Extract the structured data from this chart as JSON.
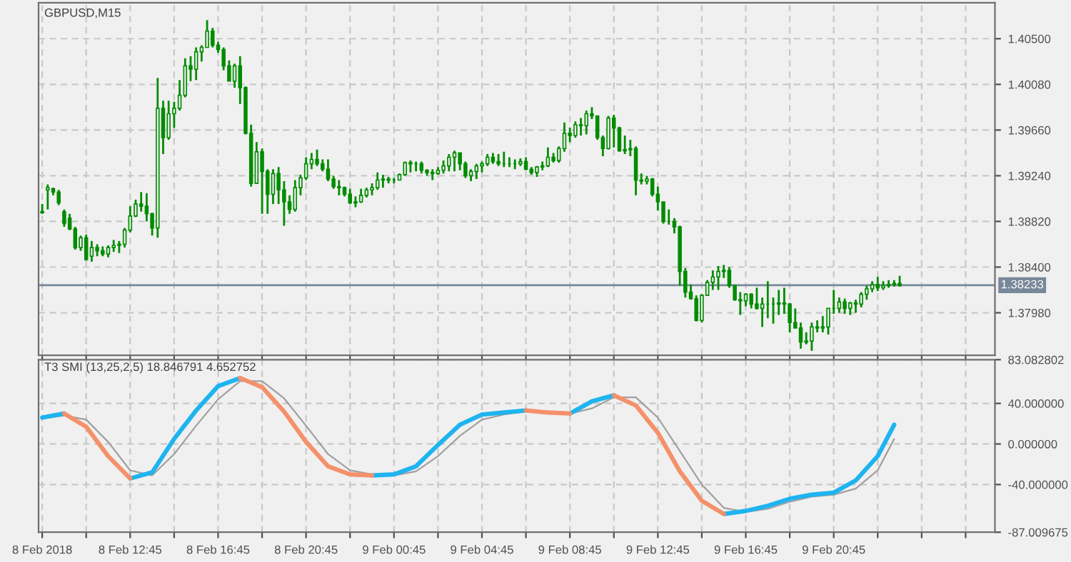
{
  "chart_data": [
    {
      "type": "candlestick",
      "title": "GBPUSD,M15",
      "color": "#008c00",
      "grid": true,
      "tick_labels": "y",
      "x": [
        "2018-02-08T08:45",
        "2018-02-08T09:00",
        "2018-02-08T09:15",
        "2018-02-08T09:30",
        "2018-02-08T09:45",
        "2018-02-08T10:00",
        "2018-02-08T10:15",
        "2018-02-08T10:30",
        "2018-02-08T10:45",
        "2018-02-08T11:00",
        "2018-02-08T11:15",
        "2018-02-08T11:30",
        "2018-02-08T11:45",
        "2018-02-08T12:00",
        "2018-02-08T12:15",
        "2018-02-08T12:30",
        "2018-02-08T12:45",
        "2018-02-08T13:00",
        "2018-02-08T13:15",
        "2018-02-08T13:30",
        "2018-02-08T13:45",
        "2018-02-08T14:00",
        "2018-02-08T14:15",
        "2018-02-08T14:30",
        "2018-02-08T14:45",
        "2018-02-08T15:00",
        "2018-02-08T15:15",
        "2018-02-08T15:30",
        "2018-02-08T15:45",
        "2018-02-08T16:00",
        "2018-02-08T16:15",
        "2018-02-08T16:30",
        "2018-02-08T16:45",
        "2018-02-08T17:00",
        "2018-02-08T17:15",
        "2018-02-08T17:30",
        "2018-02-08T17:45",
        "2018-02-08T18:00",
        "2018-02-08T18:15",
        "2018-02-08T18:30",
        "2018-02-08T18:45",
        "2018-02-08T19:00",
        "2018-02-08T19:15",
        "2018-02-08T19:30",
        "2018-02-08T19:45",
        "2018-02-08T20:00",
        "2018-02-08T20:15",
        "2018-02-08T20:30",
        "2018-02-08T20:45",
        "2018-02-08T21:00",
        "2018-02-08T21:15",
        "2018-02-08T21:30",
        "2018-02-08T21:45",
        "2018-02-08T22:00",
        "2018-02-08T22:15",
        "2018-02-08T22:30",
        "2018-02-08T22:45",
        "2018-02-08T23:00",
        "2018-02-08T23:15",
        "2018-02-08T23:30",
        "2018-02-08T23:45",
        "2018-02-09T00:00",
        "2018-02-09T00:15",
        "2018-02-09T00:30",
        "2018-02-09T00:45",
        "2018-02-09T01:00",
        "2018-02-09T01:15",
        "2018-02-09T01:30",
        "2018-02-09T01:45",
        "2018-02-09T02:00",
        "2018-02-09T02:15",
        "2018-02-09T02:30",
        "2018-02-09T02:45",
        "2018-02-09T03:00",
        "2018-02-09T03:15",
        "2018-02-09T03:30",
        "2018-02-09T03:45",
        "2018-02-09T04:00",
        "2018-02-09T04:15",
        "2018-02-09T04:30",
        "2018-02-09T04:45",
        "2018-02-09T05:00",
        "2018-02-09T05:15",
        "2018-02-09T05:30",
        "2018-02-09T05:45",
        "2018-02-09T06:00",
        "2018-02-09T06:15",
        "2018-02-09T06:30",
        "2018-02-09T06:45",
        "2018-02-09T07:00",
        "2018-02-09T07:15",
        "2018-02-09T07:30",
        "2018-02-09T07:45",
        "2018-02-09T08:00",
        "2018-02-09T08:15",
        "2018-02-09T08:30",
        "2018-02-09T08:45",
        "2018-02-09T09:00",
        "2018-02-09T09:15",
        "2018-02-09T09:30",
        "2018-02-09T09:45",
        "2018-02-09T10:00",
        "2018-02-09T10:15",
        "2018-02-09T10:30",
        "2018-02-09T10:45",
        "2018-02-09T11:00",
        "2018-02-09T11:15",
        "2018-02-09T11:30",
        "2018-02-09T11:45",
        "2018-02-09T12:00",
        "2018-02-09T12:15",
        "2018-02-09T12:30",
        "2018-02-09T12:45",
        "2018-02-09T13:00",
        "2018-02-09T13:15",
        "2018-02-09T13:30",
        "2018-02-09T13:45",
        "2018-02-09T14:00",
        "2018-02-09T14:15",
        "2018-02-09T14:30",
        "2018-02-09T14:45",
        "2018-02-09T15:00",
        "2018-02-09T15:15",
        "2018-02-09T15:30",
        "2018-02-09T15:45",
        "2018-02-09T16:00",
        "2018-02-09T16:15",
        "2018-02-09T16:30",
        "2018-02-09T16:45",
        "2018-02-09T17:00",
        "2018-02-09T17:15",
        "2018-02-09T17:30",
        "2018-02-09T17:45",
        "2018-02-09T18:00",
        "2018-02-09T18:15",
        "2018-02-09T18:30",
        "2018-02-09T18:45",
        "2018-02-09T19:00",
        "2018-02-09T19:15",
        "2018-02-09T19:30",
        "2018-02-09T19:45",
        "2018-02-09T20:00",
        "2018-02-09T20:15",
        "2018-02-09T20:30",
        "2018-02-09T20:45",
        "2018-02-09T21:00",
        "2018-02-09T21:15",
        "2018-02-09T21:30",
        "2018-02-09T21:45",
        "2018-02-09T22:00",
        "2018-02-09T22:15",
        "2018-02-09T22:30",
        "2018-02-09T22:45",
        "2018-02-09T23:00",
        "2018-02-09T23:15",
        "2018-02-09T23:30",
        "2018-02-09T23:45"
      ],
      "ohlc": [
        [
          1.3891,
          1.3898,
          1.3889,
          1.389
        ],
        [
          1.3911,
          1.3916,
          1.3893,
          1.3913
        ],
        [
          1.3912,
          1.3913,
          1.3906,
          1.3909
        ],
        [
          1.3909,
          1.3911,
          1.3897,
          1.3899
        ],
        [
          1.3891,
          1.3893,
          1.3877,
          1.388
        ],
        [
          1.3885,
          1.3889,
          1.3874,
          1.3875
        ],
        [
          1.3875,
          1.3877,
          1.3856,
          1.3858
        ],
        [
          1.3858,
          1.3869,
          1.3855,
          1.3867
        ],
        [
          1.3867,
          1.387,
          1.3846,
          1.3847
        ],
        [
          1.385,
          1.3864,
          1.3845,
          1.3858
        ],
        [
          1.3858,
          1.3861,
          1.385,
          1.3855
        ],
        [
          1.3855,
          1.3859,
          1.385,
          1.3852
        ],
        [
          1.3852,
          1.386,
          1.3849,
          1.3858
        ],
        [
          1.3858,
          1.3865,
          1.3854,
          1.386
        ],
        [
          1.386,
          1.3864,
          1.3853,
          1.3861
        ],
        [
          1.3861,
          1.3876,
          1.3858,
          1.3874
        ],
        [
          1.3874,
          1.3896,
          1.3872,
          1.3887
        ],
        [
          1.3887,
          1.3902,
          1.3886,
          1.3898
        ],
        [
          1.3898,
          1.3909,
          1.3891,
          1.3896
        ],
        [
          1.3896,
          1.3908,
          1.3882,
          1.3889
        ],
        [
          1.3889,
          1.389,
          1.3869,
          1.3876
        ],
        [
          1.3876,
          1.4014,
          1.3867,
          1.3986
        ],
        [
          1.3986,
          1.3993,
          1.3944,
          1.3959
        ],
        [
          1.3959,
          1.3993,
          1.3957,
          1.3981
        ],
        [
          1.3981,
          1.3992,
          1.3968,
          1.3986
        ],
        [
          1.3986,
          1.4012,
          1.3984,
          1.3998
        ],
        [
          1.3998,
          1.4032,
          1.3996,
          1.4025
        ],
        [
          1.4025,
          1.4034,
          1.4011,
          1.4022
        ],
        [
          1.4022,
          1.4042,
          1.4012,
          1.4038
        ],
        [
          1.4038,
          1.4044,
          1.4029,
          1.4042
        ],
        [
          1.4042,
          1.4067,
          1.4042,
          1.4057
        ],
        [
          1.4057,
          1.406,
          1.4042,
          1.4044
        ],
        [
          1.4044,
          1.4047,
          1.4037,
          1.404
        ],
        [
          1.404,
          1.4042,
          1.4021,
          1.4025
        ],
        [
          1.4025,
          1.403,
          1.4011,
          1.4011
        ],
        [
          1.4011,
          1.4027,
          1.4005,
          1.4025
        ],
        [
          1.4025,
          1.4034,
          1.399,
          1.4005
        ],
        [
          1.4005,
          1.4006,
          1.3962,
          1.3963
        ],
        [
          1.3963,
          1.3971,
          1.3914,
          1.3917
        ],
        [
          1.3917,
          1.3955,
          1.3917,
          1.3946
        ],
        [
          1.3946,
          1.3949,
          1.3889,
          1.3928
        ],
        [
          1.3928,
          1.393,
          1.3889,
          1.3907
        ],
        [
          1.3907,
          1.393,
          1.3898,
          1.3926
        ],
        [
          1.3926,
          1.3932,
          1.3898,
          1.3911
        ],
        [
          1.3911,
          1.3919,
          1.3878,
          1.39
        ],
        [
          1.39,
          1.3906,
          1.3889,
          1.3893
        ],
        [
          1.3893,
          1.392,
          1.3891,
          1.3913
        ],
        [
          1.3913,
          1.3925,
          1.3906,
          1.3922
        ],
        [
          1.3922,
          1.3941,
          1.392,
          1.3935
        ],
        [
          1.3935,
          1.3945,
          1.393,
          1.3939
        ],
        [
          1.3939,
          1.3948,
          1.3933,
          1.3935
        ],
        [
          1.3935,
          1.3939,
          1.3928,
          1.393
        ],
        [
          1.393,
          1.3939,
          1.3919,
          1.3921
        ],
        [
          1.3921,
          1.3924,
          1.3912,
          1.3914
        ],
        [
          1.3914,
          1.392,
          1.3906,
          1.3913
        ],
        [
          1.3913,
          1.3914,
          1.3905,
          1.3907
        ],
        [
          1.3907,
          1.3912,
          1.3898,
          1.3899
        ],
        [
          1.3899,
          1.3905,
          1.3895,
          1.39
        ],
        [
          1.39,
          1.3912,
          1.3899,
          1.3906
        ],
        [
          1.3906,
          1.3913,
          1.3904,
          1.3911
        ],
        [
          1.3911,
          1.3917,
          1.3906,
          1.3913
        ],
        [
          1.3913,
          1.3927,
          1.3911,
          1.392
        ],
        [
          1.392,
          1.3925,
          1.3913,
          1.3921
        ],
        [
          1.3921,
          1.3923,
          1.3917,
          1.392
        ],
        [
          1.392,
          1.3922,
          1.3917,
          1.392
        ],
        [
          1.392,
          1.3926,
          1.392,
          1.3925
        ],
        [
          1.3925,
          1.3937,
          1.3924,
          1.3936
        ],
        [
          1.3936,
          1.3938,
          1.3927,
          1.3935
        ],
        [
          1.3935,
          1.3937,
          1.3928,
          1.3935
        ],
        [
          1.3935,
          1.3937,
          1.3926,
          1.3929
        ],
        [
          1.3929,
          1.393,
          1.3924,
          1.3927
        ],
        [
          1.3927,
          1.393,
          1.392,
          1.3926
        ],
        [
          1.3926,
          1.3932,
          1.3925,
          1.3929
        ],
        [
          1.3929,
          1.3938,
          1.3926,
          1.3933
        ],
        [
          1.3933,
          1.3944,
          1.3928,
          1.3941
        ],
        [
          1.3941,
          1.3947,
          1.3928,
          1.3945
        ],
        [
          1.3945,
          1.3945,
          1.3929,
          1.3935
        ],
        [
          1.3935,
          1.3937,
          1.3922,
          1.3924
        ],
        [
          1.3924,
          1.393,
          1.3919,
          1.3928
        ],
        [
          1.3928,
          1.3935,
          1.3921,
          1.3933
        ],
        [
          1.3933,
          1.3937,
          1.3927,
          1.3935
        ],
        [
          1.3935,
          1.3944,
          1.3933,
          1.3941
        ],
        [
          1.3941,
          1.3945,
          1.3935,
          1.3937
        ],
        [
          1.3937,
          1.3944,
          1.3933,
          1.3935
        ],
        [
          1.3935,
          1.3946,
          1.3932,
          1.3935
        ],
        [
          1.3935,
          1.3941,
          1.3932,
          1.3935
        ],
        [
          1.3935,
          1.3939,
          1.393,
          1.3935
        ],
        [
          1.3935,
          1.394,
          1.3933,
          1.3937
        ],
        [
          1.3937,
          1.3941,
          1.3929,
          1.393
        ],
        [
          1.393,
          1.3932,
          1.3925,
          1.3927
        ],
        [
          1.3927,
          1.3933,
          1.3923,
          1.3932
        ],
        [
          1.3932,
          1.3937,
          1.3929,
          1.3933
        ],
        [
          1.3933,
          1.395,
          1.3932,
          1.3941
        ],
        [
          1.3941,
          1.3945,
          1.3936,
          1.3938
        ],
        [
          1.3938,
          1.3951,
          1.3936,
          1.3949
        ],
        [
          1.3949,
          1.3973,
          1.3946,
          1.3963
        ],
        [
          1.3963,
          1.3968,
          1.3955,
          1.3961
        ],
        [
          1.3961,
          1.3974,
          1.3959,
          1.3971
        ],
        [
          1.3971,
          1.3977,
          1.3961,
          1.397
        ],
        [
          1.397,
          1.3984,
          1.3962,
          1.3981
        ],
        [
          1.3981,
          1.3987,
          1.3976,
          1.3979
        ],
        [
          1.3979,
          1.3979,
          1.3957,
          1.3959
        ],
        [
          1.3959,
          1.3961,
          1.3942,
          1.3949
        ],
        [
          1.3949,
          1.3979,
          1.3948,
          1.3977
        ],
        [
          1.3977,
          1.398,
          1.395,
          1.3968
        ],
        [
          1.3968,
          1.3969,
          1.3946,
          1.3947
        ],
        [
          1.3947,
          1.3961,
          1.3944,
          1.3948
        ],
        [
          1.3948,
          1.3957,
          1.3942,
          1.3949
        ],
        [
          1.3949,
          1.3951,
          1.3906,
          1.392
        ],
        [
          1.392,
          1.3926,
          1.3916,
          1.3919
        ],
        [
          1.3919,
          1.3924,
          1.3916,
          1.3921
        ],
        [
          1.3921,
          1.3922,
          1.3905,
          1.3907
        ],
        [
          1.3907,
          1.3914,
          1.3892,
          1.39
        ],
        [
          1.39,
          1.39,
          1.388,
          1.3882
        ],
        [
          1.3882,
          1.3893,
          1.3879,
          1.3882
        ],
        [
          1.3882,
          1.3885,
          1.3871,
          1.3877
        ],
        [
          1.3877,
          1.3878,
          1.3823,
          1.3836
        ],
        [
          1.3836,
          1.3839,
          1.3812,
          1.3817
        ],
        [
          1.3817,
          1.3824,
          1.381,
          1.3811
        ],
        [
          1.3811,
          1.3814,
          1.379,
          1.3791
        ],
        [
          1.3791,
          1.3815,
          1.3789,
          1.3814
        ],
        [
          1.3814,
          1.3828,
          1.3814,
          1.3826
        ],
        [
          1.3826,
          1.3837,
          1.3819,
          1.3831
        ],
        [
          1.3831,
          1.3841,
          1.3819,
          1.3836
        ],
        [
          1.3836,
          1.3842,
          1.383,
          1.3837
        ],
        [
          1.3837,
          1.384,
          1.3821,
          1.3823
        ],
        [
          1.3823,
          1.3823,
          1.3809,
          1.381
        ],
        [
          1.381,
          1.3817,
          1.3796,
          1.3809
        ],
        [
          1.3809,
          1.3816,
          1.3804,
          1.3815
        ],
        [
          1.3815,
          1.3816,
          1.3802,
          1.3806
        ],
        [
          1.3806,
          1.3821,
          1.3801,
          1.3802
        ],
        [
          1.3802,
          1.3812,
          1.3785,
          1.3806
        ],
        [
          1.3806,
          1.3827,
          1.3793,
          1.3806
        ],
        [
          1.3806,
          1.3812,
          1.3788,
          1.3806
        ],
        [
          1.3806,
          1.3819,
          1.3796,
          1.3807
        ],
        [
          1.3807,
          1.3821,
          1.3797,
          1.3806
        ],
        [
          1.3806,
          1.3807,
          1.378,
          1.3789
        ],
        [
          1.3789,
          1.3802,
          1.3784,
          1.3784
        ],
        [
          1.3784,
          1.3789,
          1.3765,
          1.3771
        ],
        [
          1.3771,
          1.378,
          1.3769,
          1.3772
        ],
        [
          1.3772,
          1.3789,
          1.3763,
          1.3785
        ],
        [
          1.3785,
          1.3791,
          1.378,
          1.3784
        ],
        [
          1.3784,
          1.3795,
          1.378,
          1.3785
        ],
        [
          1.3785,
          1.3802,
          1.3778,
          1.3802
        ],
        [
          1.3802,
          1.3819,
          1.3797,
          1.3802
        ],
        [
          1.3802,
          1.3812,
          1.3798,
          1.3808
        ],
        [
          1.3808,
          1.3811,
          1.3797,
          1.3802
        ],
        [
          1.3802,
          1.3808,
          1.3796,
          1.3807
        ],
        [
          1.3807,
          1.381,
          1.3798,
          1.3806
        ],
        [
          1.3806,
          1.3817,
          1.3803,
          1.3815
        ],
        [
          1.3815,
          1.3823,
          1.381,
          1.382
        ],
        [
          1.382,
          1.3827,
          1.3817,
          1.3824
        ],
        [
          1.3824,
          1.3831,
          1.3818,
          1.3821
        ],
        [
          1.3821,
          1.3827,
          1.3819,
          1.3823
        ],
        [
          1.3823,
          1.3828,
          1.3821,
          1.3824
        ],
        [
          1.3824,
          1.3828,
          1.3822,
          1.3825
        ],
        [
          1.3825,
          1.3832,
          1.3822,
          1.3823
        ]
      ],
      "xlim": [
        "2018-02-08T08:35",
        "2018-02-10T04:05"
      ],
      "xticks": [
        "2018-02-08T08:45",
        "2018-02-08T10:45",
        "2018-02-08T12:45",
        "2018-02-08T14:45",
        "2018-02-08T16:45",
        "2018-02-08T18:45",
        "2018-02-08T20:45",
        "2018-02-08T22:45",
        "2018-02-09T00:45",
        "2018-02-09T02:45",
        "2018-02-09T04:45",
        "2018-02-09T06:45",
        "2018-02-09T08:45",
        "2018-02-09T10:45",
        "2018-02-09T12:45",
        "2018-02-09T14:45",
        "2018-02-09T16:45",
        "2018-02-09T18:45",
        "2018-02-09T20:45",
        "2018-02-09T22:45",
        "2018-02-10T00:45",
        "2018-02-10T02:45"
      ],
      "ylim": [
        1.3759,
        1.4083
      ],
      "yticks": [
        {
          "value": 1.405,
          "label": "1.40500"
        },
        {
          "value": 1.4008,
          "label": "1.40080"
        },
        {
          "value": 1.3966,
          "label": "1.39660"
        },
        {
          "value": 1.3924,
          "label": "1.39240"
        },
        {
          "value": 1.3882,
          "label": "1.38820"
        },
        {
          "value": 1.384,
          "label": "1.38400"
        },
        {
          "value": 1.3798,
          "label": "1.37980"
        }
      ],
      "ref_lines": [
        {
          "axis": "y",
          "value": 1.38233,
          "label": "1.38233",
          "color": "#778899"
        }
      ]
    },
    {
      "type": "line",
      "title": "T3 SMI (13,25,2,5) 18.846791 4.652752",
      "grid": true,
      "x": [
        "2018-02-08T08:45",
        "2018-02-08T09:45",
        "2018-02-08T10:45",
        "2018-02-08T11:45",
        "2018-02-08T12:45",
        "2018-02-08T13:45",
        "2018-02-08T14:45",
        "2018-02-08T15:45",
        "2018-02-08T16:45",
        "2018-02-08T17:45",
        "2018-02-08T18:45",
        "2018-02-08T19:45",
        "2018-02-08T20:45",
        "2018-02-08T21:45",
        "2018-02-08T22:45",
        "2018-02-08T23:45",
        "2018-02-09T00:45",
        "2018-02-09T01:45",
        "2018-02-09T02:45",
        "2018-02-09T03:45",
        "2018-02-09T04:45",
        "2018-02-09T05:45",
        "2018-02-09T06:45",
        "2018-02-09T07:45",
        "2018-02-09T08:45",
        "2018-02-09T09:45",
        "2018-02-09T10:45",
        "2018-02-09T11:45",
        "2018-02-09T12:45",
        "2018-02-09T13:45",
        "2018-02-09T14:45",
        "2018-02-09T15:45",
        "2018-02-09T16:45",
        "2018-02-09T17:45",
        "2018-02-09T18:45",
        "2018-02-09T19:45",
        "2018-02-09T20:45",
        "2018-02-09T21:45",
        "2018-02-09T22:45",
        "2018-02-09T23:30"
      ],
      "series": [
        {
          "color": "#a0a0a0",
          "values": [
            25,
            28,
            24,
            2,
            -26,
            -31,
            -10,
            18,
            44,
            62,
            62,
            45,
            18,
            -10,
            -26,
            -30,
            -31,
            -27,
            -12,
            8,
            24,
            29,
            32,
            32,
            30,
            35,
            46,
            46,
            26,
            -7,
            -40,
            -63,
            -67,
            -64,
            -57,
            -52,
            -50,
            -44,
            -26,
            5
          ]
        },
        {
          "color": "#1eb4f0",
          "values": [
            26,
            30,
            null,
            null,
            -34,
            -28,
            5,
            33,
            57,
            65,
            null,
            null,
            null,
            null,
            null,
            -31,
            -30,
            -22,
            -1,
            19,
            29,
            31,
            33,
            null,
            30,
            42,
            48,
            null,
            null,
            null,
            null,
            -69,
            -66,
            -61,
            -54,
            -50,
            -48,
            -36,
            -12,
            19
          ]
        },
        {
          "color": "#f4916a",
          "values": [
            null,
            30,
            17,
            -12,
            -34,
            null,
            null,
            null,
            null,
            65,
            56,
            32,
            2,
            -22,
            -30,
            -31,
            null,
            null,
            null,
            null,
            null,
            null,
            33,
            31,
            30,
            null,
            48,
            38,
            11,
            -27,
            -56,
            -69,
            null,
            null,
            null,
            null,
            null,
            null,
            null,
            null
          ]
        }
      ],
      "xlim": [
        "2018-02-08T08:35",
        "2018-02-10T04:05"
      ],
      "xticks": [
        {
          "value": "2018-02-08T08:45",
          "label": "8 Feb 2018"
        },
        {
          "value": "2018-02-08T10:45",
          "label": null
        },
        {
          "value": "2018-02-08T12:45",
          "label": "8 Feb 12:45"
        },
        {
          "value": "2018-02-08T14:45",
          "label": null
        },
        {
          "value": "2018-02-08T16:45",
          "label": "8 Feb 16:45"
        },
        {
          "value": "2018-02-08T18:45",
          "label": null
        },
        {
          "value": "2018-02-08T20:45",
          "label": "8 Feb 20:45"
        },
        {
          "value": "2018-02-08T22:45",
          "label": null
        },
        {
          "value": "2018-02-09T00:45",
          "label": "9 Feb 00:45"
        },
        {
          "value": "2018-02-09T02:45",
          "label": null
        },
        {
          "value": "2018-02-09T04:45",
          "label": "9 Feb 04:45"
        },
        {
          "value": "2018-02-09T06:45",
          "label": null
        },
        {
          "value": "2018-02-09T08:45",
          "label": "9 Feb 08:45"
        },
        {
          "value": "2018-02-09T10:45",
          "label": null
        },
        {
          "value": "2018-02-09T12:45",
          "label": "9 Feb 12:45"
        },
        {
          "value": "2018-02-09T14:45",
          "label": null
        },
        {
          "value": "2018-02-09T16:45",
          "label": "9 Feb 16:45"
        },
        {
          "value": "2018-02-09T18:45",
          "label": null
        },
        {
          "value": "2018-02-09T20:45",
          "label": "9 Feb 20:45"
        },
        {
          "value": "2018-02-09T22:45",
          "label": null
        },
        {
          "value": "2018-02-10T00:45",
          "label": null
        },
        {
          "value": "2018-02-10T02:45",
          "label": null
        }
      ],
      "ylim": [
        -87.009675,
        83.082802
      ],
      "yticks": [
        {
          "value": 83.082802,
          "label": "83.082802"
        },
        {
          "value": 40,
          "label": "40.000000"
        },
        {
          "value": 0,
          "label": "0.000000"
        },
        {
          "value": -40,
          "label": "-40.000000"
        },
        {
          "value": -87.009675,
          "label": "-87.009675"
        }
      ]
    }
  ]
}
